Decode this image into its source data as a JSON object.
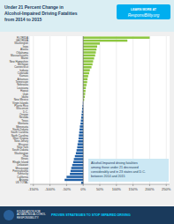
{
  "chart_data": {
    "type": "bar",
    "orientation": "horizontal",
    "title": "Under 21 Percent Change in\nAlcohol-Impaired Driving Fatalities\nfrom 2014 to 2015",
    "annotations": [
      "Alcohol-Impaired driving fatalities\namong those under 21 decreased\nconsiderably and in 23 states and D.C.\nbetween 2014 and 2015",
      "LEARN MORE AT",
      "ResponsiBility.org",
      "FOUNDATION FOR\nADVANCING ALCOHOL\nRESPONSIBILITY",
      "PROVEN STRATEGIES TO STOP IMPAIRED DRIVING"
    ],
    "categories": [
      "FLORIDA",
      "GEORGIA",
      "Washington",
      "Iowa",
      "Alaska",
      "Oklahoma",
      "Massachusetts",
      "Maine",
      "New Hampshire",
      "Michigan",
      "Connecticut",
      "Indiana",
      "Colorado",
      "Kansas",
      "Arkansas",
      "Tennessee",
      "Nebraska",
      "Louisiana",
      "Hawaii",
      "Utah",
      "Idaho",
      "New Mexico",
      "Virgin Islands",
      "Puerto Rico",
      "Wisconsin",
      "D.C.",
      "Oregon",
      "Nevada",
      "Texas",
      "Montana",
      "Minnesota",
      "North Dakota",
      "South Carolina",
      "North Carolina",
      "West Virginia",
      "New Jersey",
      "Missouri",
      "New York",
      "South Dakota",
      "Washington",
      "Ohio",
      "Illinois",
      "Rhode Island",
      "Delaware",
      "Mississippi",
      "Pennsylvania",
      "Kentucky",
      "California",
      "Arizona",
      "US TOTAL"
    ],
    "values": [
      200,
      133,
      50,
      42,
      40,
      38,
      36,
      33,
      30,
      28,
      25,
      20,
      18,
      15,
      13,
      12,
      10,
      8,
      7,
      6,
      5,
      3,
      -1,
      -2,
      -3,
      -4,
      -5,
      -6,
      -7,
      -8,
      -10,
      -11,
      -12,
      -13,
      -14,
      -15,
      -17,
      -18,
      -20,
      -22,
      -25,
      -28,
      -30,
      -33,
      -36,
      -38,
      -40,
      -50,
      -56,
      -6.1
    ],
    "colors": [
      "#8dc63f",
      "#8dc63f",
      "#8dc63f",
      "#8dc63f",
      "#8dc63f",
      "#8dc63f",
      "#8dc63f",
      "#8dc63f",
      "#8dc63f",
      "#8dc63f",
      "#8dc63f",
      "#8dc63f",
      "#8dc63f",
      "#8dc63f",
      "#8dc63f",
      "#8dc63f",
      "#8dc63f",
      "#8dc63f",
      "#8dc63f",
      "#8dc63f",
      "#8dc63f",
      "#8dc63f",
      "#1f5fa6",
      "#1f5fa6",
      "#1f5fa6",
      "#1f5fa6",
      "#1f5fa6",
      "#1f5fa6",
      "#1f5fa6",
      "#1f5fa6",
      "#1f5fa6",
      "#1f5fa6",
      "#1f5fa6",
      "#1f5fa6",
      "#1f5fa6",
      "#1f5fa6",
      "#1f5fa6",
      "#1f5fa6",
      "#1f5fa6",
      "#1f5fa6",
      "#1f5fa6",
      "#1f5fa6",
      "#1f5fa6",
      "#1f5fa6",
      "#1f5fa6",
      "#1f5fa6",
      "#1f5fa6",
      "#1f5fa6",
      "#1f5fa6",
      "#1f5fa6"
    ],
    "xlim": [
      -160,
      260
    ],
    "xticks": [
      {
        "value": -150,
        "label": "-150%"
      },
      {
        "value": -100,
        "label": "-100%"
      },
      {
        "value": -50,
        "label": "-50%"
      },
      {
        "value": 0,
        "label": "0%"
      },
      {
        "value": 50,
        "label": "50%"
      },
      {
        "value": 100,
        "label": "100%"
      },
      {
        "value": 150,
        "label": "150%"
      },
      {
        "value": 200,
        "label": "200%"
      },
      {
        "value": 250,
        "label": "250%"
      }
    ],
    "grid": true
  }
}
